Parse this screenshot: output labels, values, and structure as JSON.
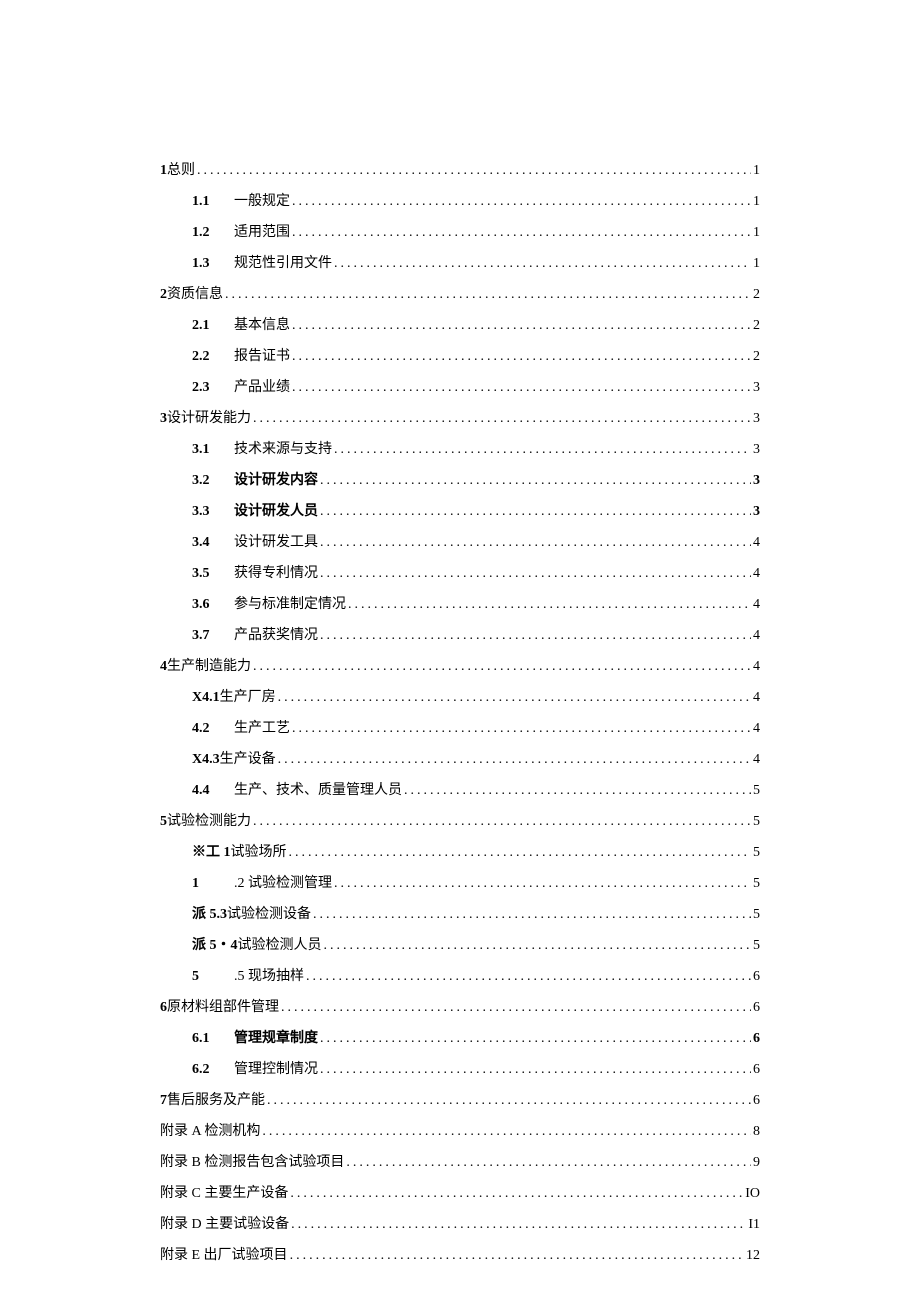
{
  "toc": {
    "entries": [
      {
        "level": 0,
        "num": "1",
        "title": "总则",
        "page": "1",
        "bold": false
      },
      {
        "level": 1,
        "num": "1.1",
        "title": "一般规定",
        "page": "1",
        "bold": false
      },
      {
        "level": 1,
        "num": "1.2",
        "title": "适用范围",
        "page": "1",
        "bold": false
      },
      {
        "level": 1,
        "num": "1.3",
        "title": "规范性引用文件",
        "page": "1",
        "bold": false
      },
      {
        "level": 0,
        "num": "2",
        "title": "资质信息",
        "page": "2",
        "bold": false
      },
      {
        "level": 1,
        "num": "2.1",
        "title": "基本信息",
        "page": "2",
        "bold": false
      },
      {
        "level": 1,
        "num": "2.2",
        "title": "报告证书",
        "page": "2",
        "bold": false
      },
      {
        "level": 1,
        "num": "2.3",
        "title": "产品业绩",
        "page": "3",
        "bold": false
      },
      {
        "level": 0,
        "num": "3",
        "title": "设计研发能力",
        "page": "3",
        "bold": false
      },
      {
        "level": 1,
        "num": "3.1",
        "title": "技术来源与支持",
        "page": "3",
        "bold": false
      },
      {
        "level": 1,
        "num": "3.2",
        "title": "设计研发内容",
        "page": "3",
        "bold": true
      },
      {
        "level": 1,
        "num": "3.3",
        "title": "设计研发人员",
        "page": "3",
        "bold": true
      },
      {
        "level": 1,
        "num": "3.4",
        "title": "设计研发工具",
        "page": "4",
        "bold": false
      },
      {
        "level": 1,
        "num": "3.5",
        "title": "获得专利情况",
        "page": "4",
        "bold": false
      },
      {
        "level": 1,
        "num": "3.6",
        "title": "参与标准制定情况",
        "page": "4",
        "bold": false
      },
      {
        "level": 1,
        "num": "3.7",
        "title": "产品获奖情况",
        "page": "4",
        "bold": false
      },
      {
        "level": 0,
        "num": "4",
        "title": "生产制造能力",
        "page": "4",
        "bold": false
      },
      {
        "level": 1,
        "num": "X4.1",
        "title": "生产厂房",
        "page": "4",
        "bold": false,
        "nomin": true
      },
      {
        "level": 1,
        "num": "4.2",
        "title": "生产工艺",
        "page": "4",
        "bold": false
      },
      {
        "level": 1,
        "num": "X4.3",
        "title": "生产设备",
        "page": "4",
        "bold": false,
        "nomin": true
      },
      {
        "level": 1,
        "num": "4.4",
        "title": "生产、技术、质量管理人员",
        "page": "5",
        "bold": false
      },
      {
        "level": 0,
        "num": "5",
        "title": "试验检测能力",
        "page": "5",
        "bold": false
      },
      {
        "level": 1,
        "num": "※工 1",
        "title": "试验场所 ",
        "page": "5",
        "bold": false,
        "nomin": true
      },
      {
        "level": 1,
        "num": "1",
        "title": " .2 试验检测管理 ",
        "page": "5",
        "bold": false
      },
      {
        "level": 1,
        "num": "派 5.3",
        "title": "试验检测设备 ",
        "page": "5",
        "bold": false,
        "nomin": true
      },
      {
        "level": 1,
        "num": "派 5・4",
        "title": "试验检测人员 ",
        "page": "5",
        "bold": false,
        "nomin": true
      },
      {
        "level": 1,
        "num": "5",
        "title": " .5 现场抽样 ",
        "page": "6",
        "bold": false
      },
      {
        "level": 0,
        "num": "6",
        "title": "原材料组部件管理",
        "page": "6",
        "bold": false
      },
      {
        "level": 1,
        "num": "6.1",
        "title": "管理规章制度",
        "page": "6",
        "bold": true
      },
      {
        "level": 1,
        "num": "6.2",
        "title": "管理控制情况",
        "page": "6",
        "bold": false
      },
      {
        "level": 0,
        "num": "7",
        "title": "售后服务及产能",
        "page": "6",
        "bold": false
      },
      {
        "level": 0,
        "num": "",
        "title": "附录 A 检测机构",
        "page": "8",
        "bold": false
      },
      {
        "level": 0,
        "num": "",
        "title": "附录 B 检测报告包含试验项目",
        "page": "9",
        "bold": false
      },
      {
        "level": 0,
        "num": "",
        "title": "附录 C 主要生产设备 ",
        "page": "IO",
        "bold": false
      },
      {
        "level": 0,
        "num": "",
        "title": "附录 D 主要试验设备 ",
        "page": "I1",
        "bold": false
      },
      {
        "level": 0,
        "num": "",
        "title": "附录 E 出厂试验项目",
        "page": "12",
        "bold": false
      }
    ]
  },
  "style": {
    "text_color": "#000000",
    "background_color": "#ffffff",
    "font_size": 14,
    "line_height": 1.5,
    "dot_char": "."
  }
}
